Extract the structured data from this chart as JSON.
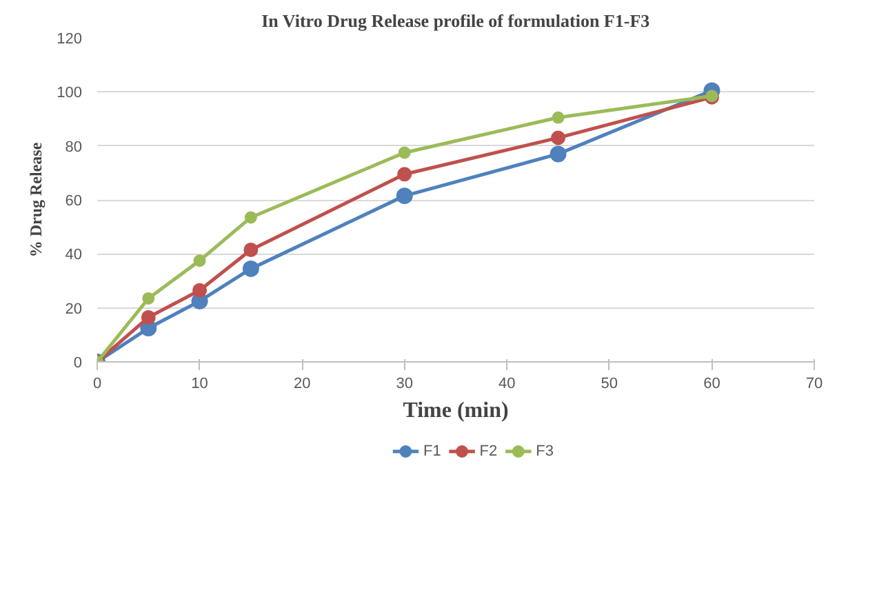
{
  "chart_data": {
    "type": "line",
    "title": "In Vitro Drug Release profile of formulation F1-F3",
    "xlabel": "Time (min)",
    "ylabel": "% Drug Release",
    "x": [
      0,
      5,
      10,
      15,
      30,
      45,
      60
    ],
    "series": [
      {
        "name": "F1",
        "color": "#4f81bd",
        "values": [
          0,
          12.5,
          22.5,
          34.5,
          61.5,
          77,
          100.5
        ]
      },
      {
        "name": "F2",
        "color": "#c0504d",
        "values": [
          0,
          16.5,
          26.5,
          41.5,
          69.5,
          83,
          98
        ]
      },
      {
        "name": "F3",
        "color": "#9bbb59",
        "values": [
          0,
          23.5,
          37.5,
          53.5,
          77.5,
          90.5,
          98.5
        ]
      }
    ],
    "xlim": [
      0,
      70
    ],
    "xticks": [
      0,
      10,
      20,
      30,
      40,
      50,
      60,
      70
    ],
    "ylim": [
      0,
      120
    ],
    "yticks": [
      0,
      20,
      40,
      60,
      80,
      100,
      120
    ],
    "grid": "y",
    "legend": "bottom",
    "marker": "circle",
    "line_style": "solid"
  }
}
